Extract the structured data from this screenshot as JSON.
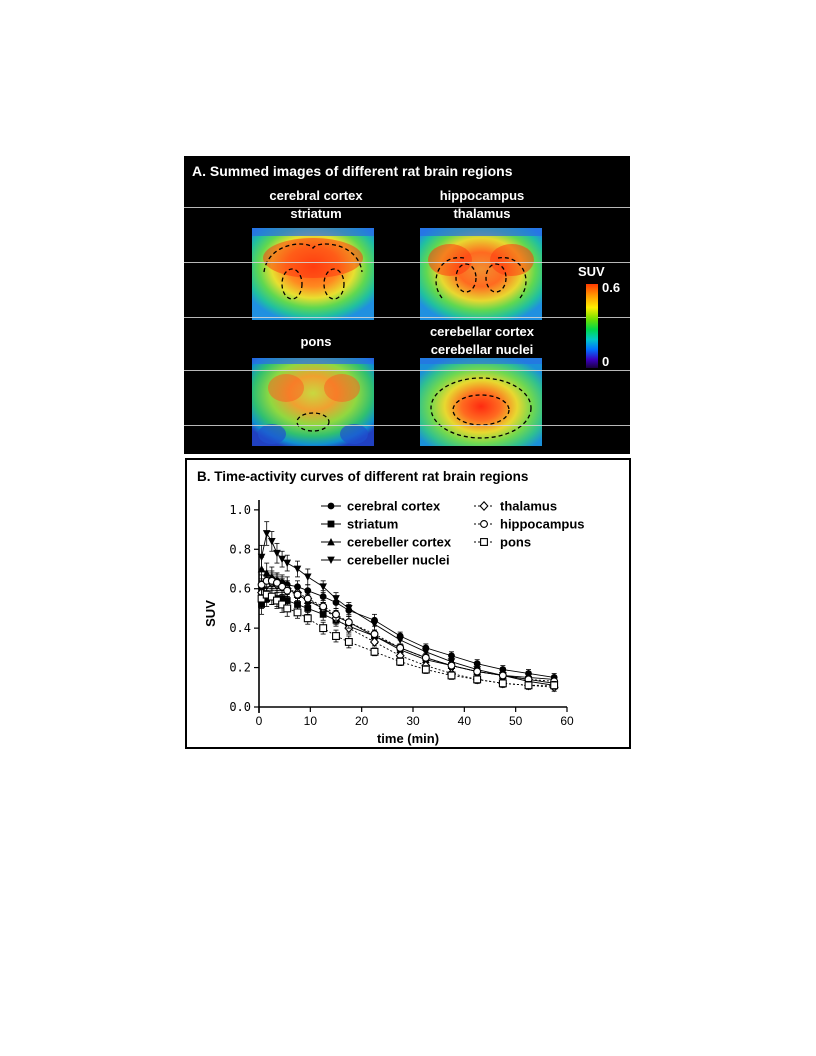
{
  "panel_a": {
    "title": "A. Summed images of different rat brain regions",
    "labels": {
      "top_left_1": "cerebral cortex",
      "top_left_2": "striatum",
      "top_right_1": "hippocampus",
      "top_right_2": "thalamus",
      "bottom_left": "pons",
      "bottom_right_1": "cerebellar cortex",
      "bottom_right_2": "cerebellar nuclei"
    },
    "colorbar": {
      "title": "SUV",
      "max_label": "0.6",
      "min_label": "0"
    }
  },
  "chart_data": {
    "type": "line",
    "title": "B. Time-activity curves of different rat brain regions",
    "xlabel": "time (min)",
    "ylabel": "SUV",
    "xlim": [
      0,
      60
    ],
    "ylim": [
      0,
      1.05
    ],
    "x_ticks": [
      "0",
      "10",
      "20",
      "30",
      "40",
      "50",
      "60"
    ],
    "y_ticks": [
      "0.0",
      "0.2",
      "0.4",
      "0.6",
      "0.8",
      "1.0"
    ],
    "legend_position": "top",
    "x": [
      0.5,
      1.5,
      2.5,
      3.5,
      4.5,
      5.5,
      7.5,
      9.5,
      12.5,
      15,
      17.5,
      22.5,
      27.5,
      32.5,
      37.5,
      42.5,
      47.5,
      52.5,
      57.5
    ],
    "series": [
      {
        "name": "cerebral cortex",
        "marker": "circle-filled",
        "values": [
          0.6,
          0.64,
          0.65,
          0.64,
          0.63,
          0.62,
          0.61,
          0.59,
          0.56,
          0.53,
          0.49,
          0.44,
          0.36,
          0.3,
          0.26,
          0.22,
          0.19,
          0.17,
          0.15
        ],
        "errors": [
          0.05,
          0.05,
          0.04,
          0.04,
          0.04,
          0.04,
          0.03,
          0.03,
          0.03,
          0.03,
          0.03,
          0.03,
          0.02,
          0.02,
          0.02,
          0.02,
          0.02,
          0.02,
          0.02
        ]
      },
      {
        "name": "striatum",
        "marker": "square-filled",
        "values": [
          0.52,
          0.55,
          0.56,
          0.55,
          0.55,
          0.54,
          0.52,
          0.5,
          0.47,
          0.44,
          0.41,
          0.36,
          0.3,
          0.25,
          0.21,
          0.18,
          0.16,
          0.14,
          0.12
        ],
        "errors": [
          0.05,
          0.04,
          0.04,
          0.04,
          0.04,
          0.03,
          0.03,
          0.03,
          0.03,
          0.03,
          0.03,
          0.02,
          0.02,
          0.02,
          0.02,
          0.02,
          0.02,
          0.02,
          0.02
        ]
      },
      {
        "name": "cerebeller cortex",
        "marker": "triangle-up-filled",
        "values": [
          0.7,
          0.68,
          0.66,
          0.64,
          0.62,
          0.6,
          0.57,
          0.54,
          0.5,
          0.46,
          0.43,
          0.36,
          0.29,
          0.24,
          0.21,
          0.18,
          0.16,
          0.15,
          0.14
        ],
        "errors": [
          0.06,
          0.05,
          0.05,
          0.04,
          0.04,
          0.04,
          0.04,
          0.03,
          0.03,
          0.03,
          0.03,
          0.03,
          0.02,
          0.02,
          0.02,
          0.02,
          0.02,
          0.02,
          0.02
        ]
      },
      {
        "name": "cerebeller nuclei",
        "marker": "triangle-down-filled",
        "values": [
          0.76,
          0.88,
          0.84,
          0.78,
          0.75,
          0.73,
          0.7,
          0.66,
          0.61,
          0.55,
          0.5,
          0.42,
          0.34,
          0.28,
          0.23,
          0.19,
          0.16,
          0.13,
          0.11
        ],
        "errors": [
          0.06,
          0.06,
          0.05,
          0.05,
          0.04,
          0.04,
          0.04,
          0.04,
          0.03,
          0.03,
          0.03,
          0.03,
          0.02,
          0.02,
          0.02,
          0.02,
          0.02,
          0.02,
          0.02
        ]
      },
      {
        "name": "thalamus",
        "marker": "diamond-open",
        "values": [
          0.58,
          0.62,
          0.63,
          0.62,
          0.61,
          0.6,
          0.58,
          0.55,
          0.5,
          0.45,
          0.4,
          0.33,
          0.26,
          0.21,
          0.17,
          0.14,
          0.12,
          0.11,
          0.1
        ],
        "errors": [
          0.05,
          0.04,
          0.04,
          0.04,
          0.04,
          0.04,
          0.03,
          0.03,
          0.03,
          0.03,
          0.03,
          0.02,
          0.02,
          0.02,
          0.02,
          0.02,
          0.02,
          0.02,
          0.02
        ]
      },
      {
        "name": "hippocampus",
        "marker": "circle-open",
        "values": [
          0.62,
          0.64,
          0.64,
          0.63,
          0.61,
          0.59,
          0.57,
          0.55,
          0.51,
          0.47,
          0.43,
          0.37,
          0.3,
          0.25,
          0.21,
          0.18,
          0.16,
          0.14,
          0.13
        ],
        "errors": [
          0.05,
          0.04,
          0.04,
          0.04,
          0.04,
          0.04,
          0.03,
          0.03,
          0.03,
          0.03,
          0.03,
          0.02,
          0.02,
          0.02,
          0.02,
          0.02,
          0.02,
          0.02,
          0.02
        ]
      },
      {
        "name": "pons",
        "marker": "square-open",
        "values": [
          0.55,
          0.57,
          0.56,
          0.54,
          0.52,
          0.5,
          0.48,
          0.45,
          0.4,
          0.36,
          0.33,
          0.28,
          0.23,
          0.19,
          0.16,
          0.14,
          0.12,
          0.11,
          0.11
        ],
        "errors": [
          0.05,
          0.04,
          0.04,
          0.04,
          0.04,
          0.04,
          0.03,
          0.03,
          0.03,
          0.03,
          0.03,
          0.02,
          0.02,
          0.02,
          0.02,
          0.02,
          0.02,
          0.02,
          0.02
        ]
      }
    ]
  }
}
